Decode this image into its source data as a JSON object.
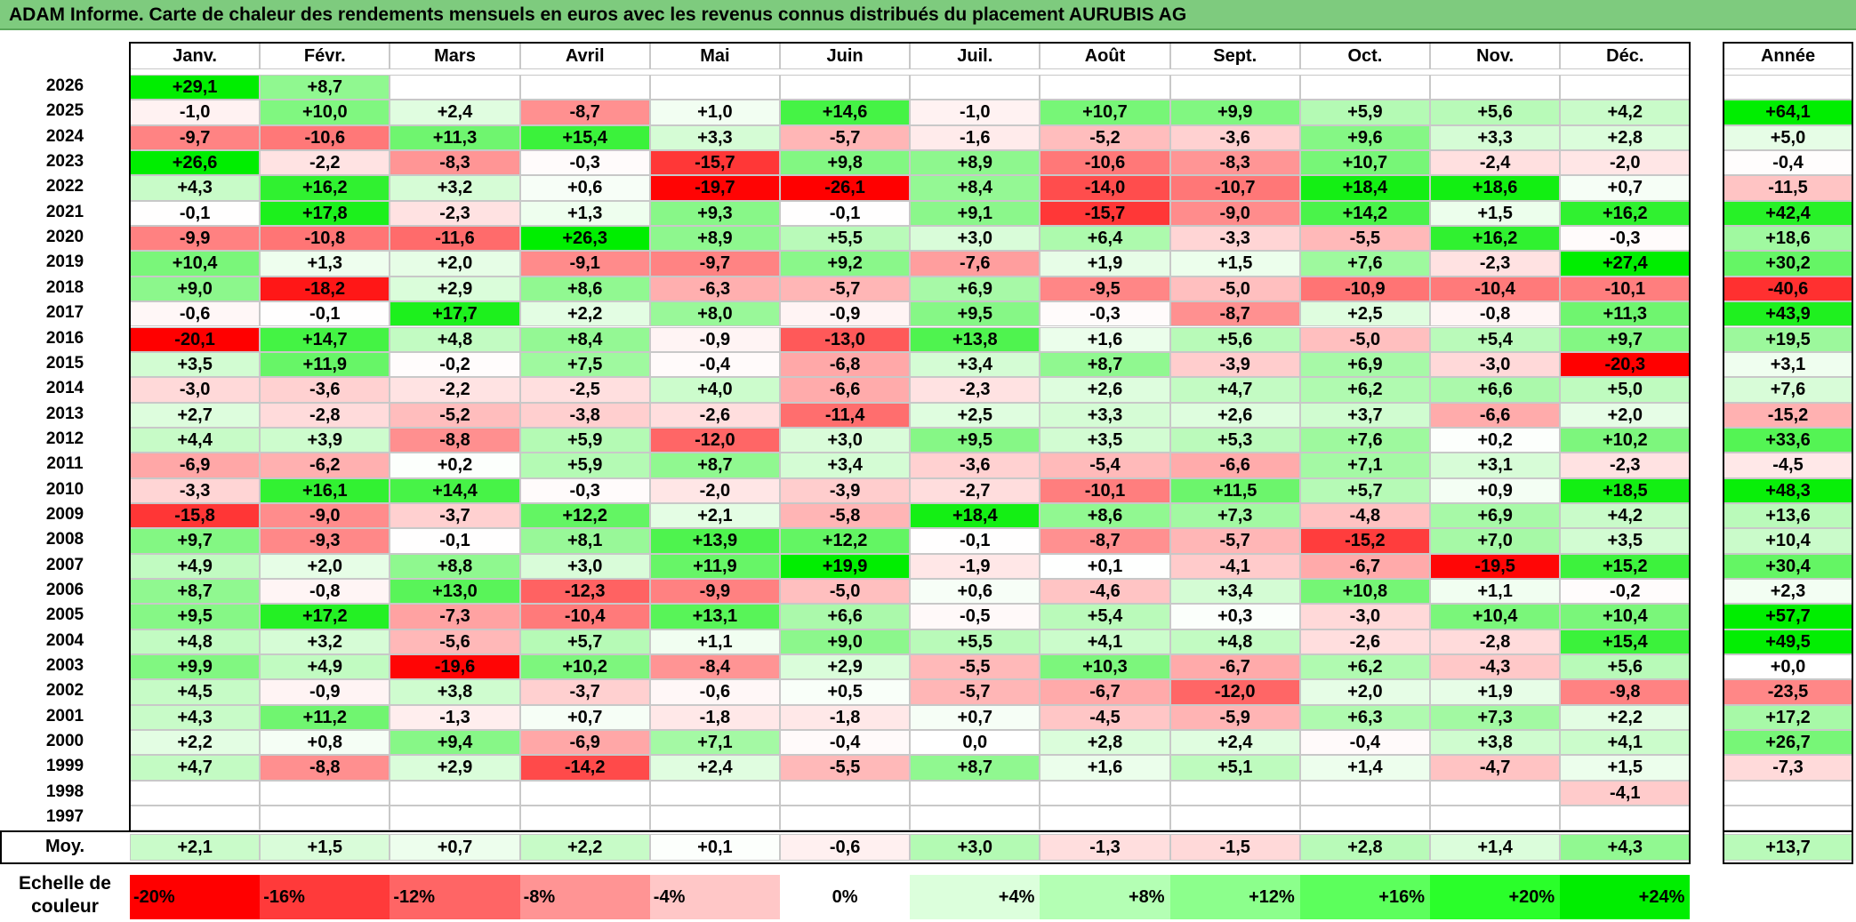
{
  "title": "ADAM Informe. Carte de chaleur des rendements mensuels en euros avec les revenus connus distribués du placement AURUBIS AG",
  "chart_data": {
    "type": "heatmap",
    "title": "ADAM Informe. Carte de chaleur des rendements mensuels en euros avec les revenus connus distribués du placement AURUBIS AG",
    "months": [
      "Janv.",
      "Févr.",
      "Mars",
      "Avril",
      "Mai",
      "Juin",
      "Juil.",
      "Août",
      "Sept.",
      "Oct.",
      "Nov.",
      "Déc."
    ],
    "year_label": "Année",
    "rows": [
      {
        "year": "2026",
        "m": [
          "+29,1",
          "+8,7",
          "",
          "",
          "",
          "",
          "",
          "",
          "",
          "",
          "",
          ""
        ],
        "annual": ""
      },
      {
        "year": "2025",
        "m": [
          "-1,0",
          "+10,0",
          "+2,4",
          "-8,7",
          "+1,0",
          "+14,6",
          "-1,0",
          "+10,7",
          "+9,9",
          "+5,9",
          "+5,6",
          "+4,2"
        ],
        "annual": "+64,1"
      },
      {
        "year": "2024",
        "m": [
          "-9,7",
          "-10,6",
          "+11,3",
          "+15,4",
          "+3,3",
          "-5,7",
          "-1,6",
          "-5,2",
          "-3,6",
          "+9,6",
          "+3,3",
          "+2,8"
        ],
        "annual": "+5,0"
      },
      {
        "year": "2023",
        "m": [
          "+26,6",
          "-2,2",
          "-8,3",
          "-0,3",
          "-15,7",
          "+9,8",
          "+8,9",
          "-10,6",
          "-8,3",
          "+10,7",
          "-2,4",
          "-2,0"
        ],
        "annual": "-0,4"
      },
      {
        "year": "2022",
        "m": [
          "+4,3",
          "+16,2",
          "+3,2",
          "+0,6",
          "-19,7",
          "-26,1",
          "+8,4",
          "-14,0",
          "-10,7",
          "+18,4",
          "+18,6",
          "+0,7"
        ],
        "annual": "-11,5"
      },
      {
        "year": "2021",
        "m": [
          "-0,1",
          "+17,8",
          "-2,3",
          "+1,3",
          "+9,3",
          "-0,1",
          "+9,1",
          "-15,7",
          "-9,0",
          "+14,2",
          "+1,5",
          "+16,2"
        ],
        "annual": "+42,4"
      },
      {
        "year": "2020",
        "m": [
          "-9,9",
          "-10,8",
          "-11,6",
          "+26,3",
          "+8,9",
          "+5,5",
          "+3,0",
          "+6,4",
          "-3,3",
          "-5,5",
          "+16,2",
          "-0,3"
        ],
        "annual": "+18,6"
      },
      {
        "year": "2019",
        "m": [
          "+10,4",
          "+1,3",
          "+2,0",
          "-9,1",
          "-9,7",
          "+9,2",
          "-7,6",
          "+1,9",
          "+1,5",
          "+7,6",
          "-2,3",
          "+27,4"
        ],
        "annual": "+30,2"
      },
      {
        "year": "2018",
        "m": [
          "+9,0",
          "-18,2",
          "+2,9",
          "+8,6",
          "-6,3",
          "-5,7",
          "+6,9",
          "-9,5",
          "-5,0",
          "-10,9",
          "-10,4",
          "-10,1"
        ],
        "annual": "-40,6"
      },
      {
        "year": "2017",
        "m": [
          "-0,6",
          "-0,1",
          "+17,7",
          "+2,2",
          "+8,0",
          "-0,9",
          "+9,5",
          "-0,3",
          "-8,7",
          "+2,5",
          "-0,8",
          "+11,3"
        ],
        "annual": "+43,9"
      },
      {
        "year": "2016",
        "m": [
          "-20,1",
          "+14,7",
          "+4,8",
          "+8,4",
          "-0,9",
          "-13,0",
          "+13,8",
          "+1,6",
          "+5,6",
          "-5,0",
          "+5,4",
          "+9,7"
        ],
        "annual": "+19,5"
      },
      {
        "year": "2015",
        "m": [
          "+3,5",
          "+11,9",
          "-0,2",
          "+7,5",
          "-0,4",
          "-6,8",
          "+3,4",
          "+8,7",
          "-3,9",
          "+6,9",
          "-3,0",
          "-20,3"
        ],
        "annual": "+3,1"
      },
      {
        "year": "2014",
        "m": [
          "-3,0",
          "-3,6",
          "-2,2",
          "-2,5",
          "+4,0",
          "-6,6",
          "-2,3",
          "+2,6",
          "+4,7",
          "+6,2",
          "+6,6",
          "+5,0"
        ],
        "annual": "+7,6"
      },
      {
        "year": "2013",
        "m": [
          "+2,7",
          "-2,8",
          "-5,2",
          "-3,8",
          "-2,6",
          "-11,4",
          "+2,5",
          "+3,3",
          "+2,6",
          "+3,7",
          "-6,6",
          "+2,0"
        ],
        "annual": "-15,2"
      },
      {
        "year": "2012",
        "m": [
          "+4,4",
          "+3,9",
          "-8,8",
          "+5,9",
          "-12,0",
          "+3,0",
          "+9,5",
          "+3,5",
          "+5,3",
          "+7,6",
          "+0,2",
          "+10,2"
        ],
        "annual": "+33,6"
      },
      {
        "year": "2011",
        "m": [
          "-6,9",
          "-6,2",
          "+0,2",
          "+5,9",
          "+8,7",
          "+3,4",
          "-3,6",
          "-5,4",
          "-6,6",
          "+7,1",
          "+3,1",
          "-2,3"
        ],
        "annual": "-4,5"
      },
      {
        "year": "2010",
        "m": [
          "-3,3",
          "+16,1",
          "+14,4",
          "-0,3",
          "-2,0",
          "-3,9",
          "-2,7",
          "-10,1",
          "+11,5",
          "+5,7",
          "+0,9",
          "+18,5"
        ],
        "annual": "+48,3"
      },
      {
        "year": "2009",
        "m": [
          "-15,8",
          "-9,0",
          "-3,7",
          "+12,2",
          "+2,1",
          "-5,8",
          "+18,4",
          "+8,6",
          "+7,3",
          "-4,8",
          "+6,9",
          "+4,2"
        ],
        "annual": "+13,6"
      },
      {
        "year": "2008",
        "m": [
          "+9,7",
          "-9,3",
          "-0,1",
          "+8,1",
          "+13,9",
          "+12,2",
          "-0,1",
          "-8,7",
          "-5,7",
          "-15,2",
          "+7,0",
          "+3,5"
        ],
        "annual": "+10,4"
      },
      {
        "year": "2007",
        "m": [
          "+4,9",
          "+2,0",
          "+8,8",
          "+3,0",
          "+11,9",
          "+19,9",
          "-1,9",
          "+0,1",
          "-4,1",
          "-6,7",
          "-19,5",
          "+15,2"
        ],
        "annual": "+30,4"
      },
      {
        "year": "2006",
        "m": [
          "+8,7",
          "-0,8",
          "+13,0",
          "-12,3",
          "-9,9",
          "-5,0",
          "+0,6",
          "-4,6",
          "+3,4",
          "+10,8",
          "+1,1",
          "-0,2"
        ],
        "annual": "+2,3"
      },
      {
        "year": "2005",
        "m": [
          "+9,5",
          "+17,2",
          "-7,3",
          "-10,4",
          "+13,1",
          "+6,6",
          "-0,5",
          "+5,4",
          "+0,3",
          "-3,0",
          "+10,4",
          "+10,4"
        ],
        "annual": "+57,7"
      },
      {
        "year": "2004",
        "m": [
          "+4,8",
          "+3,2",
          "-5,6",
          "+5,7",
          "+1,1",
          "+9,0",
          "+5,5",
          "+4,1",
          "+4,8",
          "-2,6",
          "-2,8",
          "+15,4"
        ],
        "annual": "+49,5"
      },
      {
        "year": "2003",
        "m": [
          "+9,9",
          "+4,9",
          "-19,6",
          "+10,2",
          "-8,4",
          "+2,9",
          "-5,5",
          "+10,3",
          "-6,7",
          "+6,2",
          "-4,3",
          "+5,6"
        ],
        "annual": "+0,0"
      },
      {
        "year": "2002",
        "m": [
          "+4,5",
          "-0,9",
          "+3,8",
          "-3,7",
          "-0,6",
          "+0,5",
          "-5,7",
          "-6,7",
          "-12,0",
          "+2,0",
          "+1,9",
          "-9,8"
        ],
        "annual": "-23,5"
      },
      {
        "year": "2001",
        "m": [
          "+4,3",
          "+11,2",
          "-1,3",
          "+0,7",
          "-1,8",
          "-1,8",
          "+0,7",
          "-4,5",
          "-5,9",
          "+6,3",
          "+7,3",
          "+2,2"
        ],
        "annual": "+17,2"
      },
      {
        "year": "2000",
        "m": [
          "+2,2",
          "+0,8",
          "+9,4",
          "-6,9",
          "+7,1",
          "-0,4",
          "0,0",
          "+2,8",
          "+2,4",
          "-0,4",
          "+3,8",
          "+4,1"
        ],
        "annual": "+26,7"
      },
      {
        "year": "1999",
        "m": [
          "+4,7",
          "-8,8",
          "+2,9",
          "-14,2",
          "+2,4",
          "-5,5",
          "+8,7",
          "+1,6",
          "+5,1",
          "+1,4",
          "-4,7",
          "+1,5"
        ],
        "annual": "-7,3"
      },
      {
        "year": "1998",
        "m": [
          "",
          "",
          "",
          "",
          "",
          "",
          "",
          "",
          "",
          "",
          "",
          "-4,1"
        ],
        "annual": ""
      },
      {
        "year": "1997",
        "m": [
          "",
          "",
          "",
          "",
          "",
          "",
          "",
          "",
          "",
          "",
          "",
          ""
        ],
        "annual": ""
      }
    ],
    "average": {
      "label": "Moy.",
      "m": [
        "+2,1",
        "+1,5",
        "+0,7",
        "+2,2",
        "+0,1",
        "-0,6",
        "+3,0",
        "-1,3",
        "-1,5",
        "+2,8",
        "+1,4",
        "+4,3"
      ],
      "annual": "+13,7"
    },
    "scale": {
      "label_line1": "Echelle de",
      "label_line2": "couleur",
      "steps": [
        {
          "label": "-20%",
          "color": "#ff0000"
        },
        {
          "label": "-16%",
          "color": "#ff3a3a"
        },
        {
          "label": "-12%",
          "color": "#ff6565"
        },
        {
          "label": "-8%",
          "color": "#ff9494"
        },
        {
          "label": "-4%",
          "color": "#ffc7c7"
        },
        {
          "label": "0%",
          "color": "#ffffff"
        },
        {
          "label": "+4%",
          "color": "#dcffdc"
        },
        {
          "label": "+8%",
          "color": "#b4ffb4"
        },
        {
          "label": "+12%",
          "color": "#8cff8c"
        },
        {
          "label": "+16%",
          "color": "#5cff5c"
        },
        {
          "label": "+20%",
          "color": "#2aff2a"
        },
        {
          "label": "+24%",
          "color": "#00ee00"
        }
      ]
    }
  }
}
